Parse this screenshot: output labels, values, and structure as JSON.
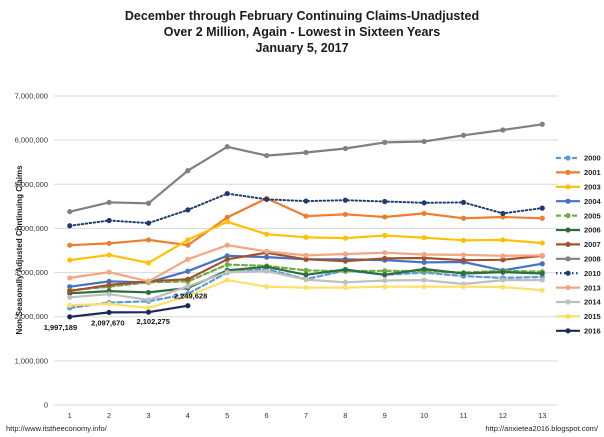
{
  "chart_data": {
    "type": "line",
    "title": [
      "December through February  Continuing Claims-Unadjusted",
      "Over 2 Million, Again - Lowest in Sixteen Years",
      "January 5, 2017"
    ],
    "xlabel": "",
    "ylabel": "Non-Seasonally Adjusted Continuing Claims",
    "x": [
      1,
      2,
      3,
      4,
      5,
      6,
      7,
      8,
      9,
      10,
      11,
      12,
      13
    ],
    "ylim": [
      0,
      7000000
    ],
    "yticks": [
      0,
      1000000,
      2000000,
      3000000,
      4000000,
      5000000,
      6000000,
      7000000
    ],
    "ytick_labels": [
      "0",
      "1,000,000",
      "2,000,000",
      "3,000,000",
      "4,000,000",
      "5,000,000",
      "6,000,000",
      "7,000,000"
    ],
    "grid": "horizontal",
    "legend_position": "right",
    "series": [
      {
        "name": "2000",
        "color": "#5b9bd5",
        "dash": "dash",
        "values": [
          2200000,
          2320000,
          2350000,
          2520000,
          3000000,
          3080000,
          2850000,
          3050000,
          2950000,
          3000000,
          2920000,
          2880000,
          2900000
        ]
      },
      {
        "name": "2001",
        "color": "#ed7d31",
        "dash": "solid",
        "values": [
          3620000,
          3660000,
          3740000,
          3620000,
          4250000,
          4680000,
          4280000,
          4320000,
          4260000,
          4340000,
          4230000,
          4260000,
          4230000
        ]
      },
      {
        "name": "2003",
        "color": "#ffc000",
        "dash": "solid",
        "values": [
          3280000,
          3400000,
          3220000,
          3740000,
          4150000,
          3870000,
          3800000,
          3780000,
          3840000,
          3790000,
          3730000,
          3740000,
          3670000
        ]
      },
      {
        "name": "2004",
        "color": "#4472c4",
        "dash": "solid",
        "values": [
          2680000,
          2800000,
          2780000,
          3030000,
          3380000,
          3350000,
          3300000,
          3300000,
          3280000,
          3230000,
          3240000,
          3050000,
          3200000
        ]
      },
      {
        "name": "2005",
        "color": "#70ad47",
        "dash": "dash",
        "values": [
          2600000,
          2680000,
          2780000,
          2800000,
          3180000,
          3150000,
          3050000,
          3030000,
          3040000,
          3030000,
          3000000,
          3040000,
          3020000
        ]
      },
      {
        "name": "2006",
        "color": "#2e6e3e",
        "dash": "solid",
        "values": [
          2530000,
          2580000,
          2550000,
          2650000,
          3050000,
          3130000,
          2950000,
          3070000,
          2950000,
          3080000,
          2980000,
          3010000,
          2980000
        ]
      },
      {
        "name": "2007",
        "color": "#a0522d",
        "dash": "solid",
        "values": [
          2580000,
          2720000,
          2800000,
          2850000,
          3300000,
          3450000,
          3300000,
          3260000,
          3320000,
          3330000,
          3280000,
          3290000,
          3380000
        ]
      },
      {
        "name": "2008",
        "color": "#808080",
        "dash": "solid",
        "values": [
          4380000,
          4590000,
          4570000,
          5310000,
          5850000,
          5650000,
          5720000,
          5810000,
          5950000,
          5970000,
          6110000,
          6230000,
          6360000
        ]
      },
      {
        "name": "2010",
        "color": "#1f3a6e",
        "dash": "dot",
        "values": [
          4060000,
          4180000,
          4120000,
          4420000,
          4790000,
          4660000,
          4620000,
          4640000,
          4610000,
          4580000,
          4590000,
          4340000,
          4460000
        ]
      },
      {
        "name": "2013",
        "color": "#f4a582",
        "dash": "solid",
        "values": [
          2880000,
          3010000,
          2800000,
          3300000,
          3620000,
          3480000,
          3390000,
          3420000,
          3450000,
          3410000,
          3400000,
          3380000,
          3390000
        ]
      },
      {
        "name": "2014",
        "color": "#bfbfbf",
        "dash": "solid",
        "values": [
          2440000,
          2510000,
          2380000,
          2690000,
          3010000,
          3030000,
          2840000,
          2780000,
          2820000,
          2830000,
          2740000,
          2830000,
          2830000
        ]
      },
      {
        "name": "2015",
        "color": "#ffe066",
        "dash": "solid",
        "values": [
          2260000,
          2290000,
          2200000,
          2470000,
          2830000,
          2680000,
          2660000,
          2660000,
          2680000,
          2680000,
          2680000,
          2670000,
          2600000
        ]
      },
      {
        "name": "2016",
        "color": "#1a2a5a",
        "dash": "solid",
        "values": [
          1997189,
          2097670,
          2102275,
          2249628,
          null,
          null,
          null,
          null,
          null,
          null,
          null,
          null,
          null
        ]
      }
    ],
    "annotations": [
      {
        "x": 1,
        "y": 1997189,
        "text": "1,997,189"
      },
      {
        "x": 2,
        "y": 2097670,
        "text": "2,097,670"
      },
      {
        "x": 3,
        "y": 2102275,
        "text": "2,102,275"
      },
      {
        "x": 4,
        "y": 2249628,
        "text": "2,249,628"
      }
    ]
  },
  "footer": {
    "left": "http://www.itstheeconomy.info/",
    "right": "http://anxietea2016.blogspot.com/"
  }
}
